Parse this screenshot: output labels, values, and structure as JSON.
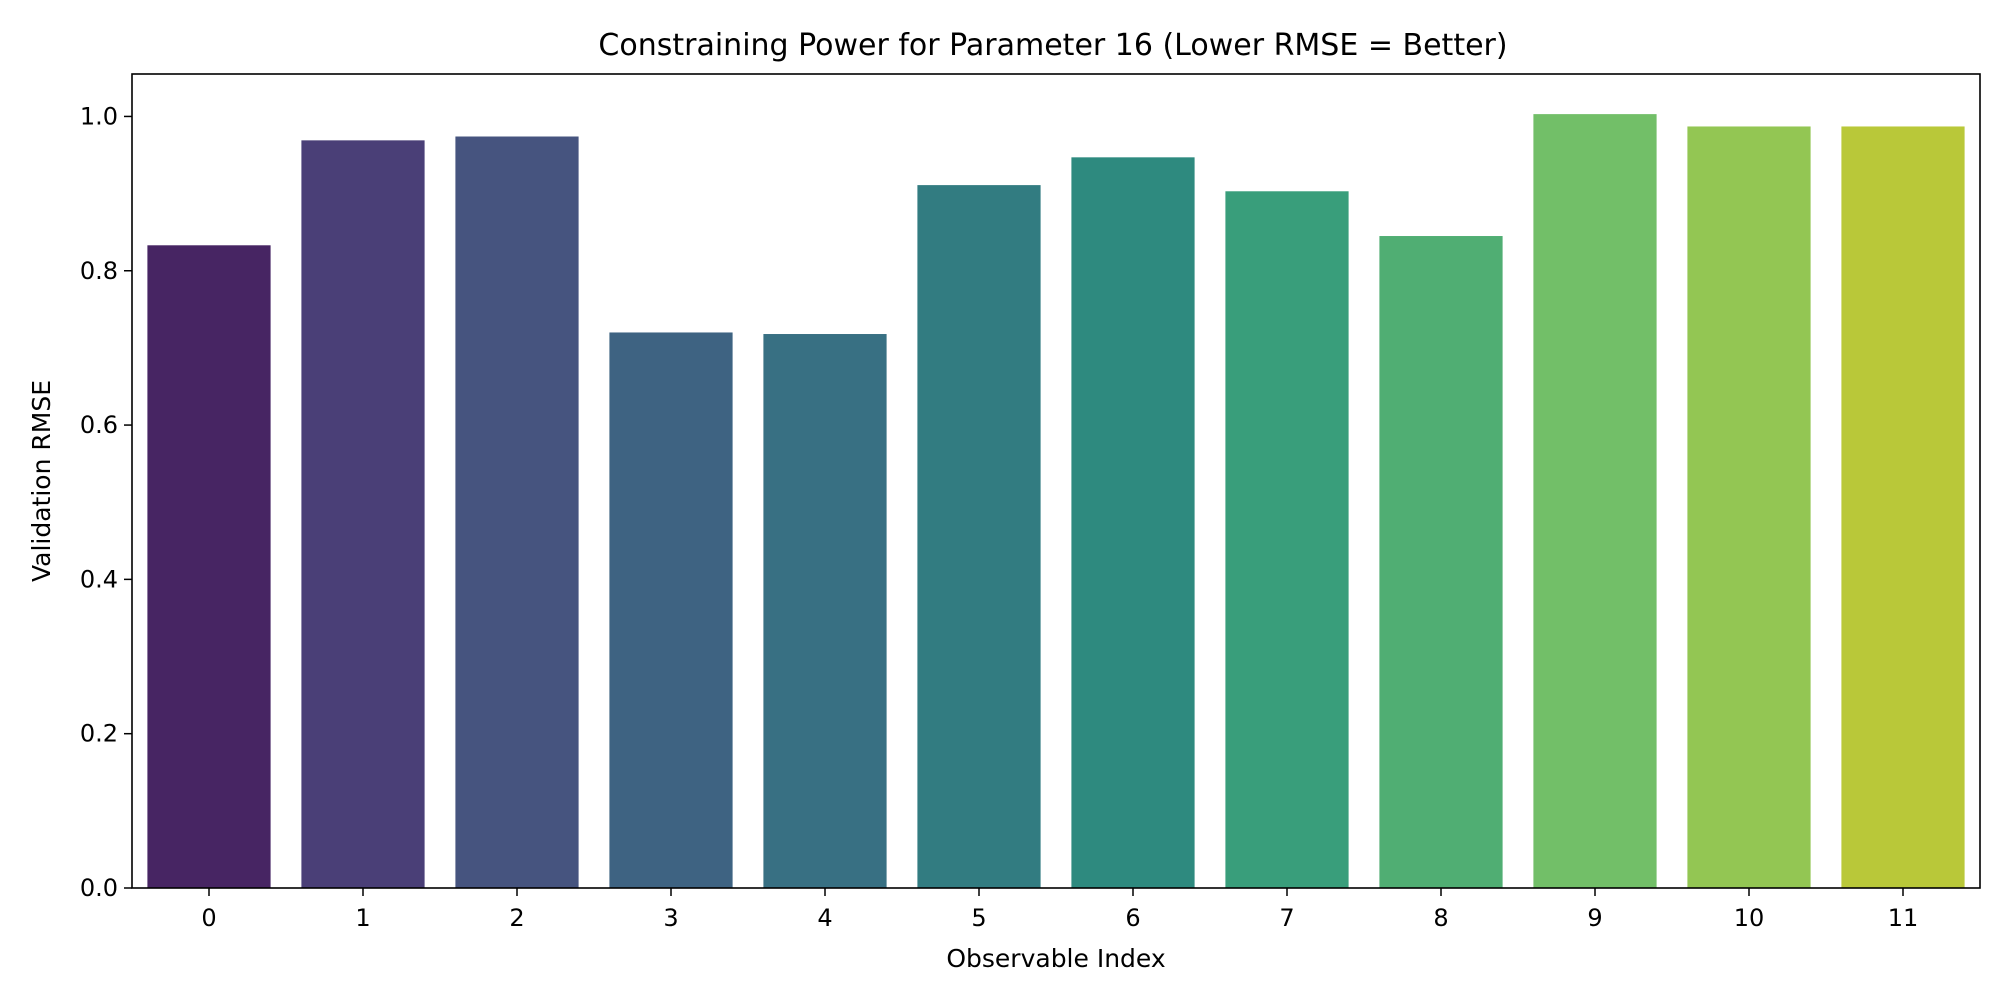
{
  "chart_data": {
    "type": "bar",
    "title": "Constraining Power for Parameter 16 (Lower RMSE = Better)",
    "xlabel": "Observable Index",
    "ylabel": "Validation RMSE",
    "categories": [
      "0",
      "1",
      "2",
      "3",
      "4",
      "5",
      "6",
      "7",
      "8",
      "9",
      "10",
      "11"
    ],
    "values": [
      0.833,
      0.969,
      0.974,
      0.72,
      0.718,
      0.911,
      0.947,
      0.903,
      0.845,
      1.003,
      0.987,
      0.987
    ],
    "colors": [
      "#472563",
      "#4a3f77",
      "#46547f",
      "#3e6382",
      "#387083",
      "#327c81",
      "#2e8a7f",
      "#399e7b",
      "#50ae73",
      "#72bf68",
      "#93c653",
      "#b9c839"
    ],
    "ylim": [
      0,
      1.055
    ],
    "yticks": [
      0.0,
      0.2,
      0.4,
      0.6,
      0.8,
      1.0
    ],
    "ytick_labels": [
      "0.0",
      "0.2",
      "0.4",
      "0.6",
      "0.8",
      "1.0"
    ],
    "grid": false,
    "legend": "none"
  }
}
